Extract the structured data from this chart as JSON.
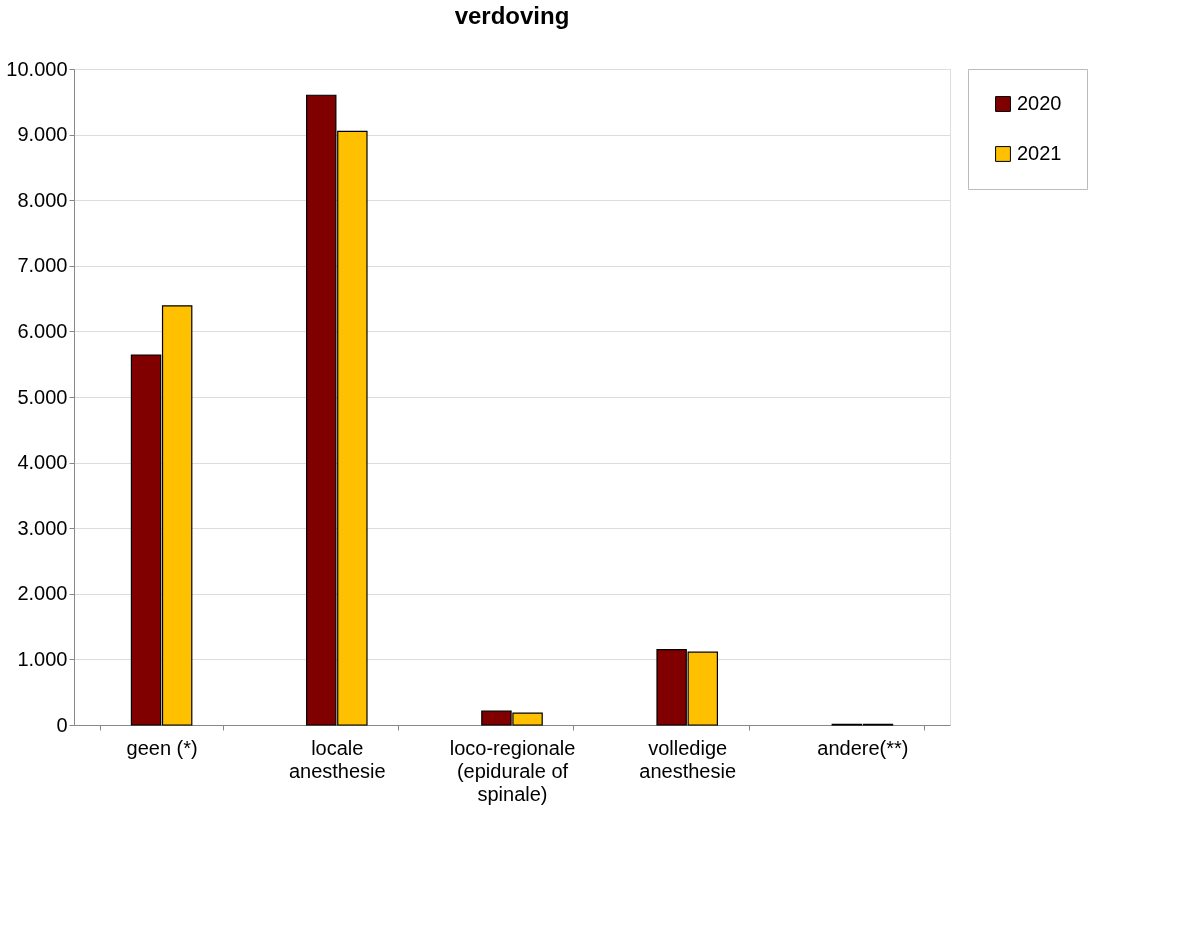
{
  "chart_data": {
    "type": "bar",
    "title": "verdoving",
    "categories": [
      "geen (*)",
      "locale anesthesie",
      "loco-regionale (epidurale of spinale)",
      "volledige anesthesie",
      "andere(**)"
    ],
    "series": [
      {
        "name": "2020",
        "color": "#800000",
        "values": [
          5640,
          9600,
          210,
          1150,
          10
        ]
      },
      {
        "name": "2021",
        "color": "#ffc000",
        "values": [
          6390,
          9050,
          180,
          1110,
          10
        ]
      }
    ],
    "ylim": [
      0,
      10000
    ],
    "yticks": [
      0,
      {
        "value": 1000,
        "label": "1.000"
      },
      {
        "value": 2000,
        "label": "2.000"
      },
      {
        "value": 3000,
        "label": "3.000"
      },
      {
        "value": 4000,
        "label": "4.000"
      },
      {
        "value": 5000,
        "label": "5.000"
      },
      {
        "value": 6000,
        "label": "6.000"
      },
      {
        "value": 7000,
        "label": "7.000"
      },
      {
        "value": 8000,
        "label": "8.000"
      },
      {
        "value": 9000,
        "label": "9.000"
      },
      {
        "value": 10000,
        "label": "10.000"
      }
    ],
    "grid": "y",
    "legend": "right"
  }
}
